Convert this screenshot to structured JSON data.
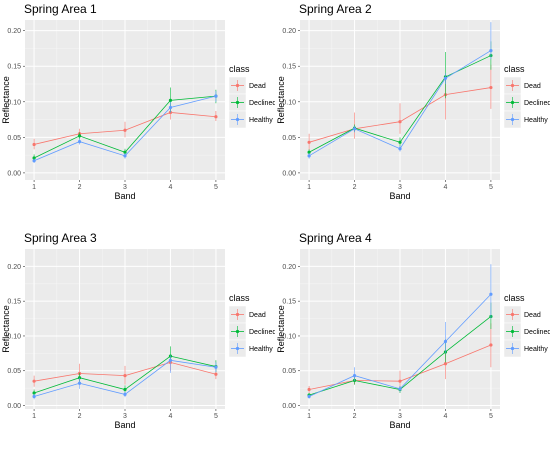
{
  "colors": {
    "Dead": "#F8766D",
    "Declined": "#00BA38",
    "Healthy": "#619CFF"
  },
  "chart_data": [
    {
      "type": "line",
      "title": "Spring Area 1",
      "xlabel": "Band",
      "ylabel": "Reflectance",
      "legend_title": "class",
      "legend_position": "right",
      "x": [
        1,
        2,
        3,
        4,
        5
      ],
      "xticks": [
        "1",
        "2",
        "3",
        "4",
        "5"
      ],
      "yticks": [
        "0.00",
        "0.05",
        "0.10",
        "0.15",
        "0.20"
      ],
      "ylim": [
        -0.01,
        0.215
      ],
      "grid": true,
      "series": [
        {
          "name": "Dead",
          "values": [
            0.04,
            0.055,
            0.06,
            0.085,
            0.079
          ],
          "err_low": [
            0.033,
            0.05,
            0.05,
            0.075,
            0.073
          ],
          "err_high": [
            0.048,
            0.062,
            0.072,
            0.095,
            0.087
          ]
        },
        {
          "name": "Declined",
          "values": [
            0.021,
            0.052,
            0.029,
            0.102,
            0.108
          ],
          "err_low": [
            0.017,
            0.047,
            0.024,
            0.085,
            0.098
          ],
          "err_high": [
            0.026,
            0.057,
            0.034,
            0.12,
            0.117
          ]
        },
        {
          "name": "Healthy",
          "values": [
            0.017,
            0.044,
            0.024,
            0.092,
            0.108
          ],
          "err_low": [
            0.014,
            0.04,
            0.02,
            0.085,
            0.1
          ],
          "err_high": [
            0.02,
            0.048,
            0.028,
            0.1,
            0.115
          ]
        }
      ]
    },
    {
      "type": "line",
      "title": "Spring Area 2",
      "xlabel": "Band",
      "ylabel": "Reflectance",
      "legend_title": "class",
      "legend_position": "right",
      "x": [
        1,
        2,
        3,
        4,
        5
      ],
      "xticks": [
        "1",
        "2",
        "3",
        "4",
        "5"
      ],
      "yticks": [
        "0.00",
        "0.05",
        "0.10",
        "0.15",
        "0.20"
      ],
      "ylim": [
        -0.01,
        0.215
      ],
      "grid": true,
      "series": [
        {
          "name": "Dead",
          "values": [
            0.043,
            0.062,
            0.072,
            0.11,
            0.12
          ],
          "err_low": [
            0.032,
            0.048,
            0.055,
            0.075,
            0.09
          ],
          "err_high": [
            0.055,
            0.085,
            0.098,
            0.135,
            0.152
          ]
        },
        {
          "name": "Declined",
          "values": [
            0.029,
            0.063,
            0.043,
            0.135,
            0.165
          ],
          "err_low": [
            0.024,
            0.058,
            0.037,
            0.105,
            0.145
          ],
          "err_high": [
            0.033,
            0.068,
            0.05,
            0.17,
            0.185
          ]
        },
        {
          "name": "Healthy",
          "values": [
            0.024,
            0.062,
            0.034,
            0.133,
            0.172
          ],
          "err_low": [
            0.02,
            0.057,
            0.03,
            0.125,
            0.16
          ],
          "err_high": [
            0.028,
            0.066,
            0.038,
            0.14,
            0.212
          ]
        }
      ]
    },
    {
      "type": "line",
      "title": "Spring Area 3",
      "xlabel": "Band",
      "ylabel": "Reflectance",
      "legend_title": "class",
      "legend_position": "right",
      "x": [
        1,
        2,
        3,
        4,
        5
      ],
      "xticks": [
        "1",
        "2",
        "3",
        "4",
        "5"
      ],
      "yticks": [
        "0.00",
        "0.05",
        "0.10",
        "0.15",
        "0.20"
      ],
      "ylim": [
        -0.005,
        0.225
      ],
      "grid": true,
      "series": [
        {
          "name": "Dead",
          "values": [
            0.035,
            0.046,
            0.043,
            0.062,
            0.045
          ],
          "err_low": [
            0.027,
            0.035,
            0.03,
            0.05,
            0.038
          ],
          "err_high": [
            0.043,
            0.06,
            0.057,
            0.072,
            0.053
          ]
        },
        {
          "name": "Declined",
          "values": [
            0.018,
            0.04,
            0.023,
            0.071,
            0.056
          ],
          "err_low": [
            0.013,
            0.033,
            0.017,
            0.063,
            0.048
          ],
          "err_high": [
            0.023,
            0.047,
            0.029,
            0.085,
            0.065
          ]
        },
        {
          "name": "Healthy",
          "values": [
            0.013,
            0.032,
            0.016,
            0.065,
            0.055
          ],
          "err_low": [
            0.009,
            0.024,
            0.012,
            0.047,
            0.048
          ],
          "err_high": [
            0.017,
            0.04,
            0.02,
            0.072,
            0.062
          ]
        }
      ]
    },
    {
      "type": "line",
      "title": "Spring Area 4",
      "xlabel": "Band",
      "ylabel": "Reflectance",
      "legend_title": "class",
      "legend_position": "right",
      "x": [
        1,
        2,
        3,
        4,
        5
      ],
      "xticks": [
        "1",
        "2",
        "3",
        "4",
        "5"
      ],
      "yticks": [
        "0.00",
        "0.05",
        "0.10",
        "0.15",
        "0.20"
      ],
      "ylim": [
        -0.005,
        0.225
      ],
      "grid": true,
      "series": [
        {
          "name": "Dead",
          "values": [
            0.023,
            0.036,
            0.035,
            0.06,
            0.087
          ],
          "err_low": [
            0.018,
            0.03,
            0.025,
            0.038,
            0.055
          ],
          "err_high": [
            0.028,
            0.043,
            0.05,
            0.08,
            0.118
          ]
        },
        {
          "name": "Declined",
          "values": [
            0.015,
            0.036,
            0.023,
            0.077,
            0.128
          ],
          "err_low": [
            0.012,
            0.03,
            0.018,
            0.062,
            0.11
          ],
          "err_high": [
            0.018,
            0.043,
            0.028,
            0.095,
            0.148
          ]
        },
        {
          "name": "Healthy",
          "values": [
            0.013,
            0.043,
            0.024,
            0.092,
            0.16
          ],
          "err_low": [
            0.01,
            0.035,
            0.02,
            0.075,
            0.125
          ],
          "err_high": [
            0.016,
            0.055,
            0.028,
            0.12,
            0.203
          ]
        }
      ]
    }
  ]
}
